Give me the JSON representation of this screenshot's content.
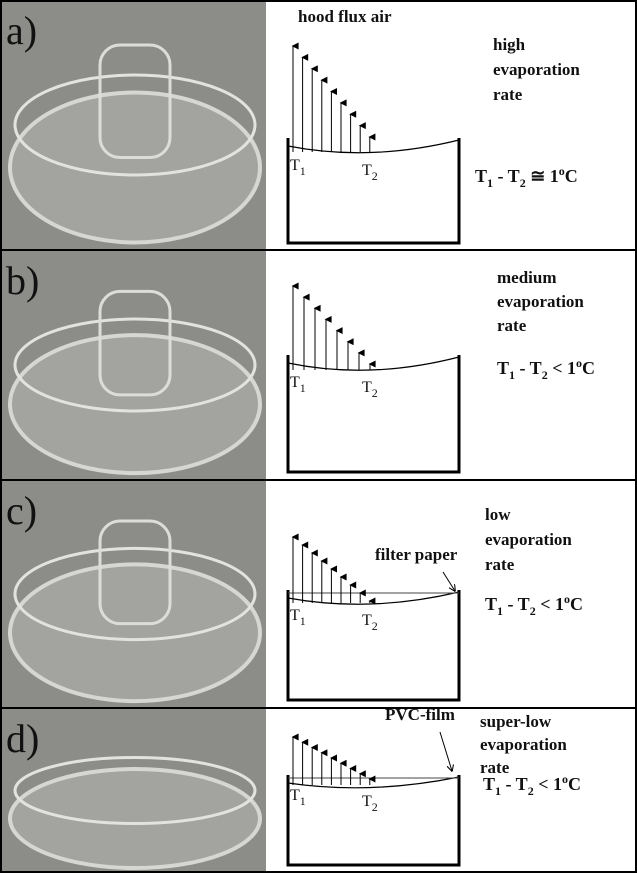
{
  "panels": [
    {
      "label": "a)",
      "note": "hood flux air",
      "caption": [
        "high",
        "evaporation",
        "rate"
      ],
      "t1": [
        "T",
        "1"
      ],
      "t2": [
        "T",
        "2"
      ],
      "equation": [
        "T",
        "1",
        " - T",
        "2",
        " ≅ 1",
        "o",
        "C"
      ]
    },
    {
      "label": "b)",
      "caption": [
        "medium",
        "evaporation",
        "rate"
      ],
      "t1": [
        "T",
        "1"
      ],
      "t2": [
        "T",
        "2"
      ],
      "equation": [
        "T",
        "1",
        " - T",
        "2",
        " < 1",
        "o",
        "C"
      ]
    },
    {
      "label": "c)",
      "note": "filter paper",
      "caption": [
        "low",
        "evaporation",
        "rate"
      ],
      "t1": [
        "T",
        "1"
      ],
      "t2": [
        "T",
        "2"
      ],
      "equation": [
        "T",
        "1",
        " - T",
        "2",
        " < 1",
        "o",
        "C"
      ]
    },
    {
      "label": "d)",
      "note": "PVC-film",
      "caption": [
        "super-low",
        "evaporation",
        "rate"
      ],
      "t1": [
        "T",
        "1"
      ],
      "t2": [
        "T",
        "2"
      ],
      "equation": [
        "T",
        "1",
        " - T",
        "2",
        " < 1",
        "o",
        "C"
      ]
    }
  ]
}
